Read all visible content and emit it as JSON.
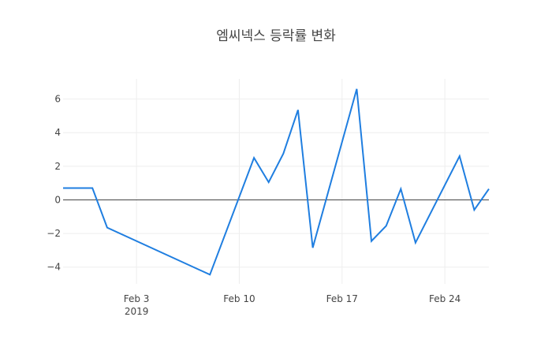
{
  "chart_data": {
    "type": "line",
    "title": "엠씨넥스 등락률 변화",
    "xlabel": "",
    "ylabel": "",
    "x": [
      "2019-01-29",
      "2019-01-30",
      "2019-01-31",
      "2019-02-01",
      "2019-02-08",
      "2019-02-11",
      "2019-02-12",
      "2019-02-13",
      "2019-02-14",
      "2019-02-15",
      "2019-02-18",
      "2019-02-19",
      "2019-02-20",
      "2019-02-21",
      "2019-02-22",
      "2019-02-25",
      "2019-02-26",
      "2019-02-27"
    ],
    "series": [
      {
        "values": [
          0.7,
          0.7,
          0.7,
          -1.65,
          -4.45,
          2.5,
          1.05,
          2.75,
          5.35,
          -2.85,
          6.6,
          -2.45,
          -1.55,
          0.65,
          -2.55,
          2.6,
          -0.6,
          0.65
        ],
        "color": "#1f7ee0"
      }
    ],
    "xlim": [
      "2019-01-29",
      "2019-02-27"
    ],
    "ylim": [
      -5.0,
      7.2
    ],
    "x_ticks": [
      {
        "date": "2019-02-03",
        "label": "Feb 3",
        "sublabel": "2019"
      },
      {
        "date": "2019-02-10",
        "label": "Feb 10",
        "sublabel": ""
      },
      {
        "date": "2019-02-17",
        "label": "Feb 17",
        "sublabel": ""
      },
      {
        "date": "2019-02-24",
        "label": "Feb 24",
        "sublabel": ""
      }
    ],
    "y_ticks": [
      {
        "value": -4,
        "label": "−4"
      },
      {
        "value": -2,
        "label": "−2"
      },
      {
        "value": 0,
        "label": "0"
      },
      {
        "value": 2,
        "label": "2"
      },
      {
        "value": 4,
        "label": "4"
      },
      {
        "value": 6,
        "label": "6"
      }
    ],
    "grid": true,
    "zero_line": true,
    "legend": "none",
    "colors": {
      "line": "#1f7ee0",
      "grid": "#eeeeee",
      "zero_line": "#444444",
      "text": "#444444"
    }
  }
}
